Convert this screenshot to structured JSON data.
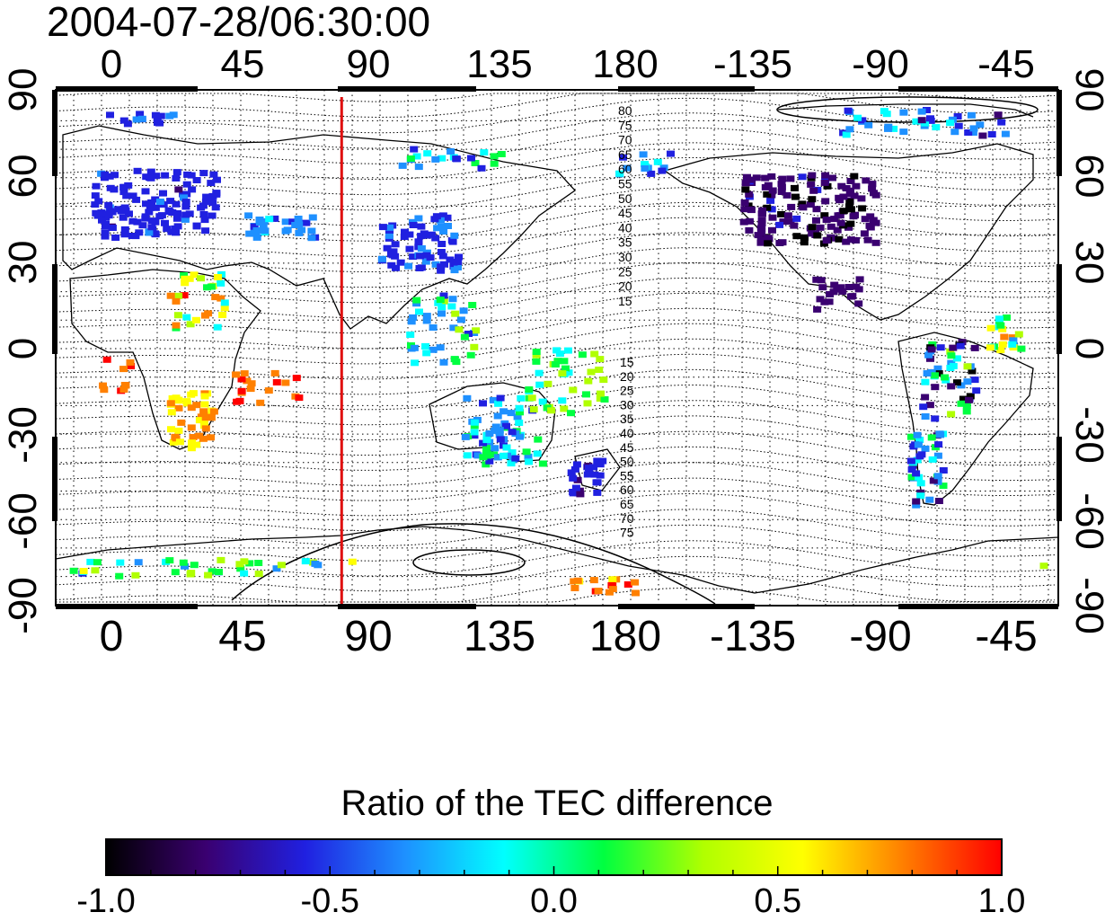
{
  "title": "2004-07-28/06:30:00",
  "map": {
    "lon_top_labels": [
      "0",
      "45",
      "90",
      "135",
      "180",
      "-135",
      "-90",
      "-45"
    ],
    "lon_bottom_labels": [
      "0",
      "45",
      "90",
      "135",
      "180",
      "-135",
      "-90",
      "-45"
    ],
    "lat_left_labels": [
      "90",
      "60",
      "30",
      "0",
      "-30",
      "-60",
      "-90"
    ],
    "lat_right_labels": [
      "90",
      "60",
      "30",
      "0",
      "-30",
      "-60",
      "-90"
    ],
    "contour_labels_north": [
      "80",
      "75",
      "70",
      "65",
      "60",
      "55",
      "50",
      "45",
      "40",
      "35",
      "30",
      "25",
      "20",
      "15"
    ],
    "contour_labels_south": [
      "15",
      "20",
      "25",
      "30",
      "35",
      "40",
      "45",
      "50",
      "55",
      "60",
      "65",
      "70",
      "75"
    ],
    "marker_line": {
      "longitude": 83,
      "color": "#e01010"
    }
  },
  "colorbar": {
    "title": "Ratio of the TEC difference",
    "tick_labels": [
      "-1.0",
      "-0.5",
      "0.0",
      "0.5",
      "1.0"
    ],
    "colors": [
      "#000000",
      "#3a0070",
      "#2020e0",
      "#1e90ff",
      "#00ffff",
      "#00ff40",
      "#b0ff00",
      "#ffff00",
      "#ff8000",
      "#ff0000"
    ]
  }
}
